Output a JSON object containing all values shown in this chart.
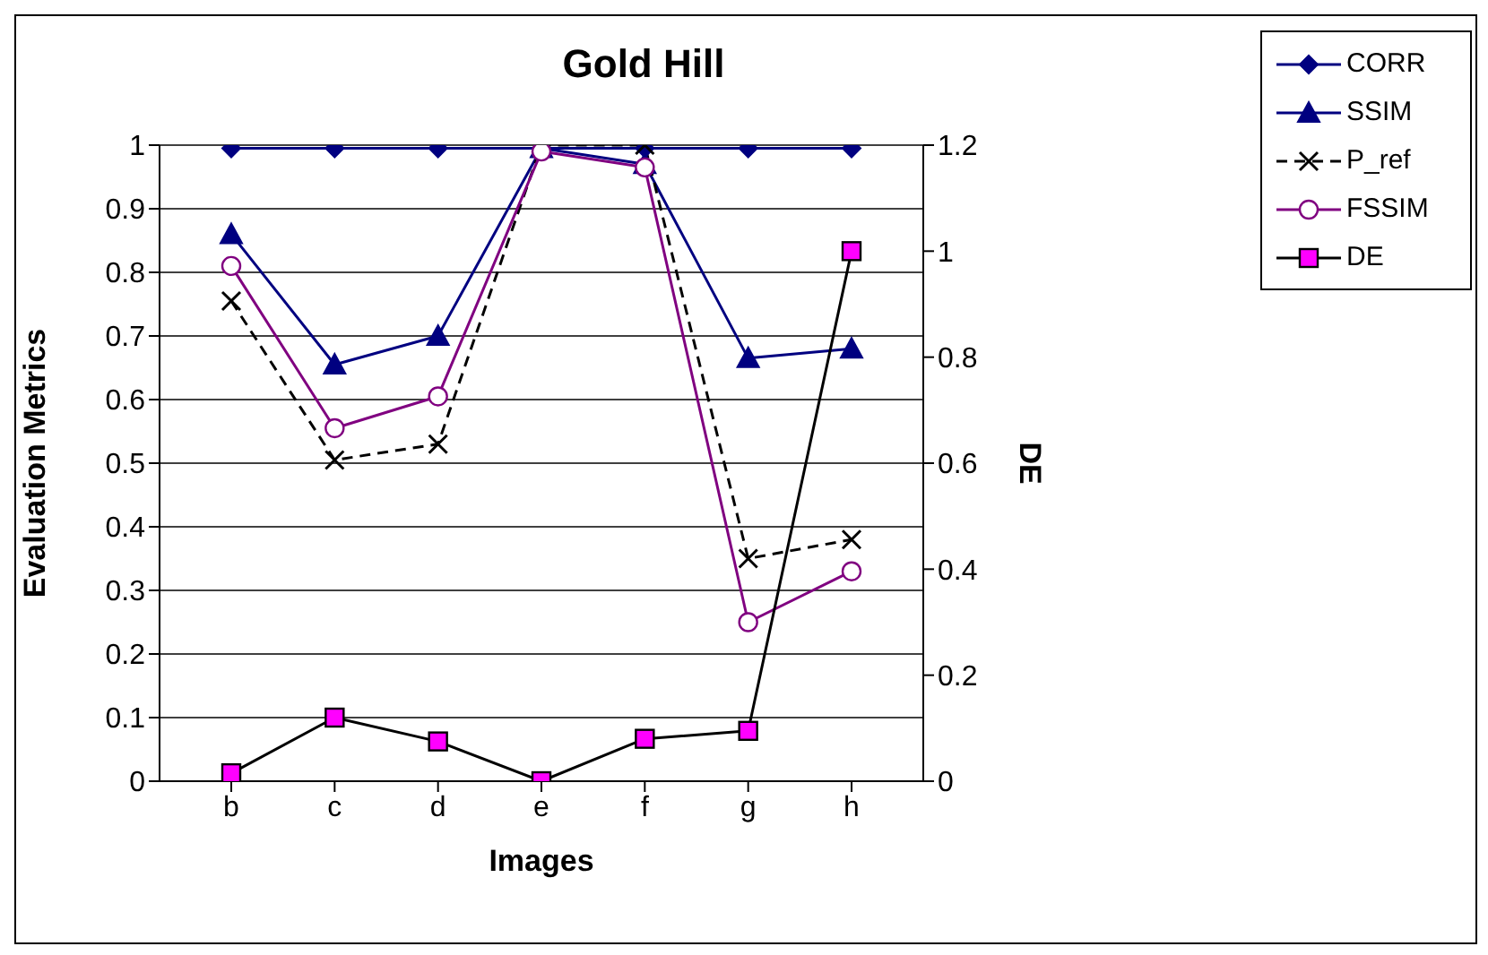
{
  "chart_data": {
    "type": "line",
    "title": "Gold Hill",
    "xlabel": "Images",
    "ylabel": "Evaluation Metrics",
    "y2label": "DE",
    "categories": [
      "b",
      "c",
      "d",
      "e",
      "f",
      "g",
      "h"
    ],
    "series": [
      {
        "name": "CORR",
        "color": "#000080",
        "marker": "diamond",
        "line_style": "solid",
        "values": [
          0.995,
          0.995,
          0.995,
          0.995,
          0.995,
          0.995,
          0.995
        ]
      },
      {
        "name": "SSIM",
        "color": "#000080",
        "marker": "triangle",
        "line_style": "solid",
        "values": [
          0.86,
          0.655,
          0.7,
          0.995,
          0.97,
          0.665,
          0.68
        ]
      },
      {
        "name": "P_ref",
        "color": "#000000",
        "marker": "cross",
        "line_style": "dashed",
        "values": [
          0.755,
          0.505,
          0.53,
          1.0,
          1.0,
          0.35,
          0.38
        ]
      },
      {
        "name": "FSSIM",
        "color": "#800080",
        "marker": "circle",
        "line_style": "solid",
        "values": [
          0.81,
          0.555,
          0.605,
          0.99,
          0.965,
          0.25,
          0.33
        ]
      },
      {
        "name": "DE",
        "color": "#000000",
        "marker": "square",
        "line_style": "solid",
        "axis": "y2",
        "values": [
          0.015,
          0.12,
          0.075,
          0,
          0.08,
          0.095,
          1.0
        ]
      }
    ],
    "ylim": [
      0,
      1
    ],
    "yticks": [
      0,
      0.1,
      0.2,
      0.3,
      0.4,
      0.5,
      0.6,
      0.7,
      0.8,
      0.9,
      1
    ],
    "y2lim": [
      0,
      1.2
    ],
    "y2ticks": [
      0,
      0.2,
      0.4,
      0.6,
      0.8,
      1,
      1.2
    ],
    "grid": "y",
    "legend": "top right"
  }
}
